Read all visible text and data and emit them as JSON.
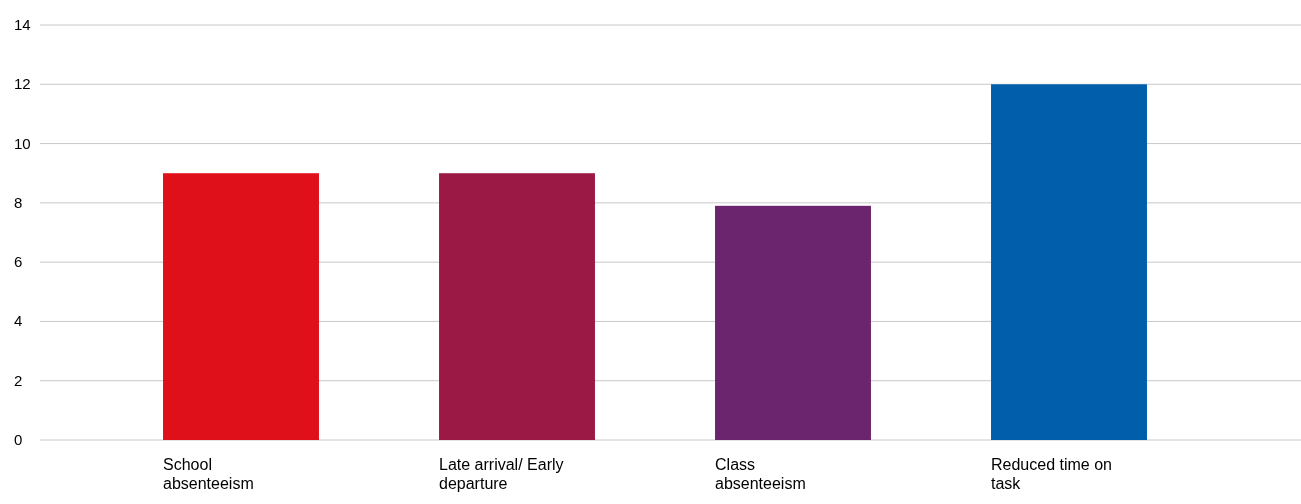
{
  "chart_data": {
    "type": "bar",
    "categories": [
      "School absenteeism",
      "Late arrival/ Early departure",
      "Class absenteeism",
      "Reduced time on task"
    ],
    "values": [
      9,
      9,
      7.9,
      12
    ],
    "colors": [
      "#e0101a",
      "#9b1a45",
      "#6b246e",
      "#005eab"
    ],
    "ylim": [
      0,
      14
    ],
    "yticks": [
      0,
      2,
      4,
      6,
      8,
      10,
      12,
      14
    ],
    "grid": "y"
  }
}
